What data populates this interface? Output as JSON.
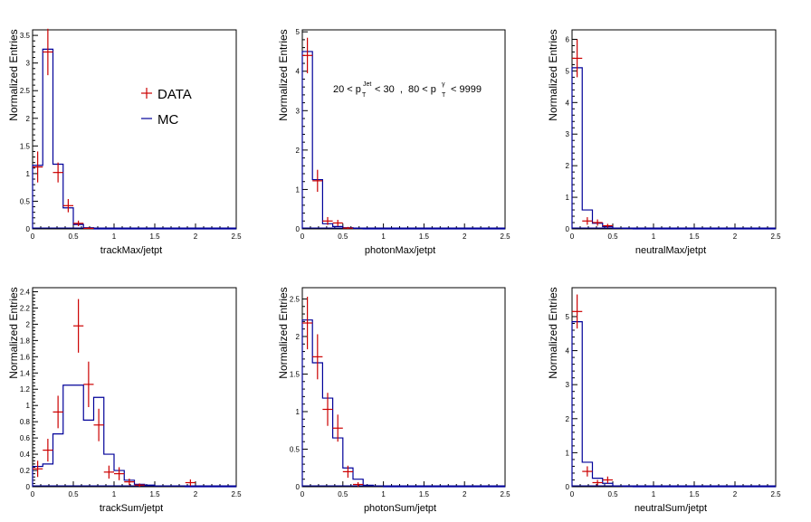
{
  "figure": {
    "legend": {
      "data_label": "DATA",
      "mc_label": "MC",
      "data_color": "#cc0000",
      "mc_color": "#000099"
    },
    "annotation": {
      "t1": "20 < p",
      "s1": "Jet",
      "b1": "T",
      "t2": "< 30  ,  80 < p",
      "s2": "γ",
      "b2": "T",
      "t3": "< 9999"
    }
  },
  "chart_data": [
    {
      "type": "histogram",
      "xlabel": "trackMax/jetpt",
      "ylabel": "Normalized Entries",
      "xlim": [
        0,
        2.5
      ],
      "ylim": [
        0,
        3.6
      ],
      "bin_width": 0.125,
      "xticks": [
        "0",
        "0.5",
        "1",
        "1.5",
        "2",
        "2.5"
      ],
      "yticks": [
        {
          "v": 0,
          "l": "0"
        },
        {
          "v": 0.5,
          "l": "0.5"
        },
        {
          "v": 1,
          "l": "1"
        },
        {
          "v": 1.5,
          "l": "1.5"
        },
        {
          "v": 2,
          "l": "2"
        },
        {
          "v": 2.5,
          "l": "2.5"
        },
        {
          "v": 3,
          "l": "3"
        },
        {
          "v": 3.5,
          "l": "3.5"
        }
      ],
      "mc": [
        1.15,
        3.25,
        1.17,
        0.38,
        0.08,
        0.02,
        0,
        0,
        0,
        0,
        0,
        0,
        0,
        0,
        0,
        0,
        0,
        0,
        0,
        0
      ],
      "data": [
        {
          "x": 0.0625,
          "y": 1.12,
          "err": 0.28
        },
        {
          "x": 0.1875,
          "y": 3.2,
          "err": 0.42
        },
        {
          "x": 0.3125,
          "y": 1.02,
          "err": 0.18
        },
        {
          "x": 0.4375,
          "y": 0.42,
          "err": 0.12
        },
        {
          "x": 0.5625,
          "y": 0.1,
          "err": 0.05
        },
        {
          "x": 0.6875,
          "y": 0.01,
          "err": 0.02
        }
      ]
    },
    {
      "type": "histogram",
      "xlabel": "photonMax/jetpt",
      "ylabel": "Normalized Entries",
      "xlim": [
        0,
        2.5
      ],
      "ylim": [
        0,
        5.05
      ],
      "bin_width": 0.125,
      "xticks": [
        "0",
        "0.5",
        "1",
        "1.5",
        "2",
        "2.5"
      ],
      "yticks": [
        {
          "v": 0,
          "l": "0"
        },
        {
          "v": 1,
          "l": "1"
        },
        {
          "v": 2,
          "l": "2"
        },
        {
          "v": 3,
          "l": "3"
        },
        {
          "v": 4,
          "l": "4"
        },
        {
          "v": 5,
          "l": "5"
        }
      ],
      "mc": [
        4.5,
        1.25,
        0.13,
        0.06,
        0.03,
        0.01,
        0,
        0,
        0,
        0,
        0,
        0,
        0,
        0,
        0,
        0,
        0,
        0,
        0,
        0
      ],
      "data": [
        {
          "x": 0.0625,
          "y": 4.4,
          "err": 0.45
        },
        {
          "x": 0.1875,
          "y": 1.22,
          "err": 0.28
        },
        {
          "x": 0.3125,
          "y": 0.2,
          "err": 0.1
        },
        {
          "x": 0.4375,
          "y": 0.15,
          "err": 0.08
        },
        {
          "x": 0.5625,
          "y": 0.02,
          "err": 0.03
        }
      ]
    },
    {
      "type": "histogram",
      "xlabel": "neutralMax/jetpt",
      "ylabel": "Normalized Entries",
      "xlim": [
        0,
        2.5
      ],
      "ylim": [
        0,
        6.3
      ],
      "bin_width": 0.125,
      "xticks": [
        "0",
        "0.5",
        "1",
        "1.5",
        "2",
        "2.5"
      ],
      "yticks": [
        {
          "v": 0,
          "l": "0"
        },
        {
          "v": 1,
          "l": "1"
        },
        {
          "v": 2,
          "l": "2"
        },
        {
          "v": 3,
          "l": "3"
        },
        {
          "v": 4,
          "l": "4"
        },
        {
          "v": 5,
          "l": "5"
        },
        {
          "v": 6,
          "l": "6"
        }
      ],
      "mc": [
        5.1,
        0.6,
        0.18,
        0.07,
        0.02,
        0.01,
        0,
        0,
        0,
        0,
        0,
        0,
        0,
        0,
        0,
        0,
        0,
        0,
        0,
        0
      ],
      "data": [
        {
          "x": 0.0625,
          "y": 5.4,
          "err": 0.6
        },
        {
          "x": 0.1875,
          "y": 0.25,
          "err": 0.12
        },
        {
          "x": 0.3125,
          "y": 0.2,
          "err": 0.1
        },
        {
          "x": 0.4375,
          "y": 0.1,
          "err": 0.06
        }
      ]
    },
    {
      "type": "histogram",
      "xlabel": "trackSum/jetpt",
      "ylabel": "Normalized Entries",
      "xlim": [
        0,
        2.5
      ],
      "ylim": [
        0,
        2.45
      ],
      "bin_width": 0.125,
      "xticks": [
        "0",
        "0.5",
        "1",
        "1.5",
        "2",
        "2.5"
      ],
      "yticks": [
        {
          "v": 0,
          "l": "0"
        },
        {
          "v": 0.2,
          "l": "0.2"
        },
        {
          "v": 0.4,
          "l": "0.4"
        },
        {
          "v": 0.6,
          "l": "0.6"
        },
        {
          "v": 0.8,
          "l": "0.8"
        },
        {
          "v": 1.0,
          "l": "1"
        },
        {
          "v": 1.2,
          "l": "1.2"
        },
        {
          "v": 1.4,
          "l": "1.4"
        },
        {
          "v": 1.6,
          "l": "1.6"
        },
        {
          "v": 1.8,
          "l": "1.8"
        },
        {
          "v": 2.0,
          "l": "2"
        },
        {
          "v": 2.2,
          "l": "2.2"
        },
        {
          "v": 2.4,
          "l": "2.4"
        }
      ],
      "mc": [
        0.25,
        0.28,
        0.65,
        1.25,
        1.25,
        0.82,
        1.1,
        0.4,
        0.2,
        0.08,
        0.03,
        0.02,
        0.01,
        0.01,
        0.01,
        0,
        0,
        0,
        0,
        0
      ],
      "data": [
        {
          "x": 0.0625,
          "y": 0.22,
          "err": 0.1
        },
        {
          "x": 0.1875,
          "y": 0.45,
          "err": 0.14
        },
        {
          "x": 0.3125,
          "y": 0.92,
          "err": 0.2
        },
        {
          "x": 0.5625,
          "y": 1.98,
          "err": 0.33
        },
        {
          "x": 0.6875,
          "y": 1.26,
          "err": 0.28
        },
        {
          "x": 0.8125,
          "y": 0.76,
          "err": 0.2
        },
        {
          "x": 0.9375,
          "y": 0.18,
          "err": 0.08
        },
        {
          "x": 1.0625,
          "y": 0.16,
          "err": 0.08
        },
        {
          "x": 1.1875,
          "y": 0.06,
          "err": 0.04
        },
        {
          "x": 1.3125,
          "y": 0.02,
          "err": 0.02
        },
        {
          "x": 1.9375,
          "y": 0.05,
          "err": 0.04
        }
      ]
    },
    {
      "type": "histogram",
      "xlabel": "photonSum/jetpt",
      "ylabel": "Normalized Entries",
      "xlim": [
        0,
        2.5
      ],
      "ylim": [
        0,
        2.65
      ],
      "bin_width": 0.125,
      "xticks": [
        "0",
        "0.5",
        "1",
        "1.5",
        "2",
        "2.5"
      ],
      "yticks": [
        {
          "v": 0,
          "l": "0"
        },
        {
          "v": 0.5,
          "l": "0.5"
        },
        {
          "v": 1,
          "l": "1"
        },
        {
          "v": 1.5,
          "l": "1.5"
        },
        {
          "v": 2,
          "l": "2"
        },
        {
          "v": 2.5,
          "l": "2.5"
        }
      ],
      "mc": [
        2.22,
        1.65,
        1.18,
        0.65,
        0.25,
        0.1,
        0.02,
        0.01,
        0,
        0,
        0,
        0,
        0,
        0,
        0,
        0,
        0,
        0,
        0,
        0
      ],
      "data": [
        {
          "x": 0.0625,
          "y": 2.18,
          "err": 0.35
        },
        {
          "x": 0.1875,
          "y": 1.73,
          "err": 0.3
        },
        {
          "x": 0.3125,
          "y": 1.03,
          "err": 0.22
        },
        {
          "x": 0.4375,
          "y": 0.78,
          "err": 0.18
        },
        {
          "x": 0.5625,
          "y": 0.2,
          "err": 0.08
        },
        {
          "x": 0.6875,
          "y": 0.03,
          "err": 0.03
        }
      ]
    },
    {
      "type": "histogram",
      "xlabel": "neutralSum/jetpt",
      "ylabel": "Normalized Entries",
      "xlim": [
        0,
        2.5
      ],
      "ylim": [
        0,
        5.85
      ],
      "bin_width": 0.125,
      "xticks": [
        "0",
        "0.5",
        "1",
        "1.5",
        "2",
        "2.5"
      ],
      "yticks": [
        {
          "v": 0,
          "l": "0"
        },
        {
          "v": 1,
          "l": "1"
        },
        {
          "v": 2,
          "l": "2"
        },
        {
          "v": 3,
          "l": "3"
        },
        {
          "v": 4,
          "l": "4"
        },
        {
          "v": 5,
          "l": "5"
        }
      ],
      "mc": [
        4.85,
        0.72,
        0.25,
        0.1,
        0.02,
        0.01,
        0,
        0,
        0,
        0,
        0,
        0,
        0,
        0,
        0,
        0,
        0,
        0,
        0,
        0
      ],
      "data": [
        {
          "x": 0.0625,
          "y": 5.15,
          "err": 0.5
        },
        {
          "x": 0.1875,
          "y": 0.45,
          "err": 0.15
        },
        {
          "x": 0.3125,
          "y": 0.12,
          "err": 0.08
        },
        {
          "x": 0.4375,
          "y": 0.2,
          "err": 0.1
        }
      ]
    }
  ]
}
